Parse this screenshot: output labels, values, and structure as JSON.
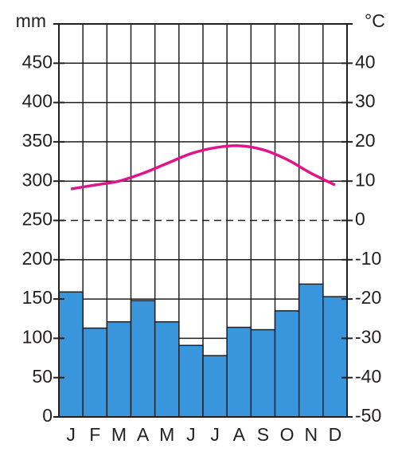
{
  "chart_data": {
    "type": "bar",
    "y_label": "mm",
    "y2_label": "°C",
    "categories": [
      "J",
      "F",
      "M",
      "A",
      "M",
      "J",
      "J",
      "A",
      "S",
      "O",
      "N",
      "D"
    ],
    "series": [
      {
        "type": "bar",
        "color": "#3a96dc",
        "values": [
          159,
          113,
          121,
          148,
          121,
          91,
          78,
          114,
          111,
          135,
          169,
          153
        ]
      },
      {
        "type": "line",
        "axis": "y2",
        "color": "#e0158c",
        "values": [
          8,
          9,
          10,
          12,
          14.5,
          17,
          18.5,
          19,
          18,
          15.5,
          12,
          9
        ]
      }
    ],
    "ylim": [
      0,
      500
    ],
    "yticks": [
      0,
      50,
      100,
      150,
      200,
      250,
      300,
      350,
      400,
      450
    ],
    "y2lim": [
      -50,
      50
    ],
    "y2ticks": [
      -50,
      -40,
      -30,
      -20,
      -10,
      0,
      10,
      20,
      30,
      40
    ],
    "grid": true
  }
}
